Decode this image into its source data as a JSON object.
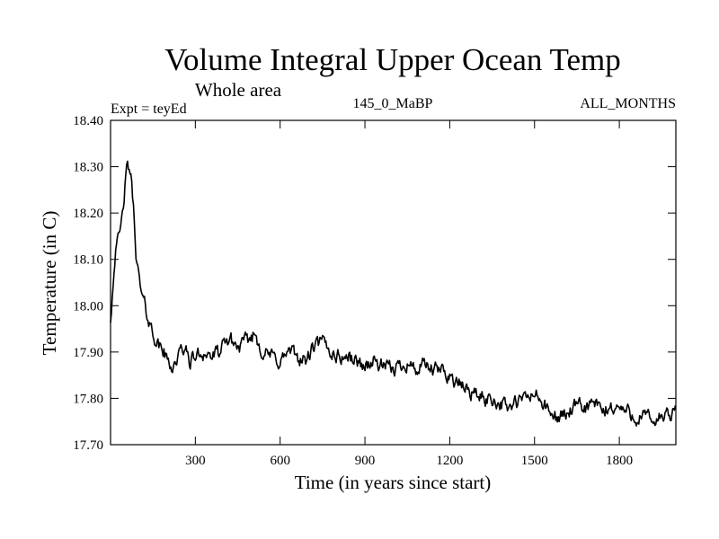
{
  "chart_data": {
    "type": "line",
    "title": "Volume Integral Upper Ocean Temp",
    "subtitle": "Whole area",
    "left_label": "Expt = teyEd",
    "center_label": "145_0_MaBP",
    "right_label": "ALL_MONTHS",
    "xlabel": "Time (in years since start)",
    "ylabel": "Temperature (in C)",
    "xlim": [
      0,
      2000
    ],
    "ylim": [
      17.7,
      18.4
    ],
    "x_ticks": [
      300,
      600,
      900,
      1200,
      1500,
      1800
    ],
    "x_tick_labels": [
      "300",
      "600",
      "900",
      "1200",
      "1500",
      "1800"
    ],
    "y_ticks": [
      17.7,
      17.8,
      17.9,
      18.0,
      18.1,
      18.2,
      18.3,
      18.4
    ],
    "y_tick_labels": [
      "17.70",
      "17.80",
      "17.90",
      "18.00",
      "18.10",
      "18.20",
      "18.30",
      "18.40"
    ],
    "series": [
      {
        "name": "Volume Integral Upper Ocean Temp",
        "color": "#000000",
        "x": [
          0,
          10,
          20,
          30,
          40,
          50,
          60,
          70,
          80,
          90,
          100,
          110,
          120,
          130,
          140,
          150,
          160,
          170,
          180,
          190,
          200,
          220,
          240,
          260,
          280,
          300,
          330,
          360,
          390,
          420,
          450,
          480,
          510,
          540,
          570,
          600,
          630,
          660,
          690,
          720,
          750,
          780,
          810,
          840,
          870,
          900,
          930,
          960,
          990,
          1020,
          1050,
          1080,
          1110,
          1140,
          1170,
          1200,
          1230,
          1260,
          1290,
          1320,
          1350,
          1380,
          1410,
          1440,
          1470,
          1500,
          1530,
          1560,
          1590,
          1620,
          1650,
          1680,
          1710,
          1740,
          1770,
          1800,
          1830,
          1860,
          1890,
          1920,
          1950,
          1980,
          2000
        ],
        "values": [
          17.97,
          18.06,
          18.15,
          18.14,
          18.18,
          18.25,
          18.3,
          18.29,
          18.22,
          18.12,
          18.06,
          18.02,
          18.0,
          17.98,
          17.96,
          17.94,
          17.93,
          17.91,
          17.91,
          17.9,
          17.88,
          17.87,
          17.89,
          17.91,
          17.88,
          17.89,
          17.9,
          17.89,
          17.9,
          17.93,
          17.91,
          17.92,
          17.94,
          17.9,
          17.89,
          17.88,
          17.9,
          17.89,
          17.88,
          17.91,
          17.92,
          17.9,
          17.89,
          17.89,
          17.88,
          17.87,
          17.88,
          17.87,
          17.86,
          17.87,
          17.88,
          17.86,
          17.87,
          17.86,
          17.86,
          17.85,
          17.83,
          17.82,
          17.81,
          17.8,
          17.8,
          17.79,
          17.78,
          17.79,
          17.8,
          17.81,
          17.79,
          17.76,
          17.76,
          17.77,
          17.78,
          17.78,
          17.79,
          17.77,
          17.78,
          17.78,
          17.77,
          17.76,
          17.76,
          17.75,
          17.76,
          17.76,
          17.77
        ]
      }
    ]
  }
}
